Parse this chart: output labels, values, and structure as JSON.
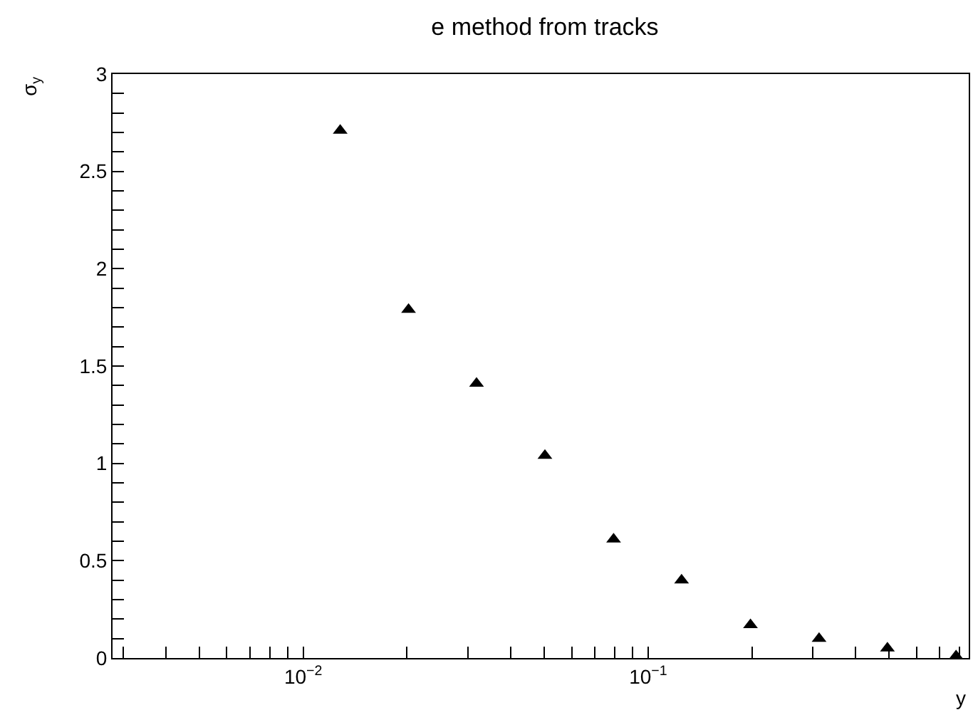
{
  "chart_data": {
    "type": "scatter",
    "title": "e method from tracks",
    "xlabel": "y",
    "ylabel": "σ$_{y}$",
    "x": [
      0.0128,
      0.0202,
      0.0318,
      0.0502,
      0.0794,
      0.125,
      0.198,
      0.313,
      0.494,
      0.781
    ],
    "series": [
      {
        "color": "#000000",
        "values": [
          2.71,
          1.79,
          1.41,
          1.04,
          0.61,
          0.4,
          0.17,
          0.1,
          0.05,
          0.01
        ]
      }
    ],
    "log": "x",
    "marker": "triangle",
    "grid": false,
    "xlim": [
      0.0028,
      0.85
    ],
    "ylim": [
      0,
      3
    ],
    "xticks": [
      {
        "value": 0.003,
        "label": null
      },
      {
        "value": 0.004,
        "label": null
      },
      {
        "value": 0.005,
        "label": null
      },
      {
        "value": 0.006,
        "label": null
      },
      {
        "value": 0.007,
        "label": null
      },
      {
        "value": 0.008,
        "label": null
      },
      {
        "value": 0.009,
        "label": null
      },
      {
        "value": 0.01,
        "label": "10$^{−2}$"
      },
      {
        "value": 0.02,
        "label": null
      },
      {
        "value": 0.03,
        "label": null
      },
      {
        "value": 0.04,
        "label": null
      },
      {
        "value": 0.05,
        "label": null
      },
      {
        "value": 0.06,
        "label": null
      },
      {
        "value": 0.07,
        "label": null
      },
      {
        "value": 0.08,
        "label": null
      },
      {
        "value": 0.09,
        "label": null
      },
      {
        "value": 0.1,
        "label": "10$^{−1}$"
      },
      {
        "value": 0.2,
        "label": null
      },
      {
        "value": 0.3,
        "label": null
      },
      {
        "value": 0.4,
        "label": null
      },
      {
        "value": 0.5,
        "label": null
      },
      {
        "value": 0.6,
        "label": null
      },
      {
        "value": 0.7,
        "label": null
      },
      {
        "value": 0.8,
        "label": null
      }
    ],
    "yticks": [
      0,
      {
        "value": 0.1,
        "label": null
      },
      {
        "value": 0.2,
        "label": null
      },
      {
        "value": 0.3,
        "label": null
      },
      {
        "value": 0.4,
        "label": null
      },
      0.5,
      {
        "value": 0.6,
        "label": null
      },
      {
        "value": 0.7,
        "label": null
      },
      {
        "value": 0.8,
        "label": null
      },
      {
        "value": 0.9,
        "label": null
      },
      1,
      {
        "value": 1.1,
        "label": null
      },
      {
        "value": 1.2,
        "label": null
      },
      {
        "value": 1.3,
        "label": null
      },
      {
        "value": 1.4,
        "label": null
      },
      1.5,
      {
        "value": 1.6,
        "label": null
      },
      {
        "value": 1.7,
        "label": null
      },
      {
        "value": 1.8,
        "label": null
      },
      {
        "value": 1.9,
        "label": null
      },
      2,
      {
        "value": 2.1,
        "label": null
      },
      {
        "value": 2.2,
        "label": null
      },
      {
        "value": 2.3,
        "label": null
      },
      {
        "value": 2.4,
        "label": null
      },
      2.5,
      {
        "value": 2.6,
        "label": null
      },
      {
        "value": 2.7,
        "label": null
      },
      {
        "value": 2.8,
        "label": null
      },
      {
        "value": 2.9,
        "label": null
      },
      3
    ]
  }
}
